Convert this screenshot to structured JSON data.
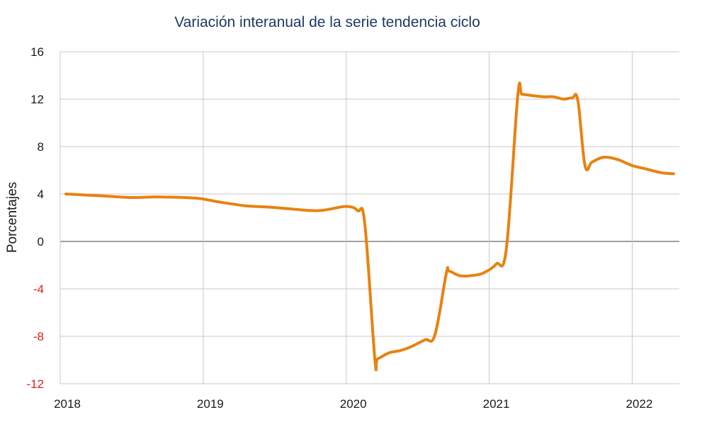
{
  "chart_data": {
    "type": "line",
    "title": "Variación interanual de la serie tendencia ciclo",
    "xlabel": "",
    "ylabel": "Porcentajes",
    "xlim": [
      2018.0,
      2022.33
    ],
    "ylim": [
      -12,
      16
    ],
    "y_ticks": [
      "16",
      "12",
      "8",
      "4",
      "0",
      "-4",
      "-8",
      "-12"
    ],
    "y_tick_values": [
      16,
      12,
      8,
      4,
      0,
      -4,
      -8,
      -12
    ],
    "x_ticks": [
      "2018",
      "2019",
      "2020",
      "2021",
      "2022"
    ],
    "x_tick_values": [
      2018,
      2019,
      2020,
      2021,
      2022
    ],
    "grid": true,
    "colors": {
      "line": "#e8820e",
      "negative_tick": "#e0201c",
      "positive_tick": "#1a1a1a",
      "grid": "#c8c8c8",
      "zero_line": "#808080"
    },
    "series": [
      {
        "x": [
          2018.04,
          2018.2,
          2018.35,
          2018.5,
          2018.7,
          2018.95,
          2019.1,
          2019.3,
          2019.45,
          2019.6,
          2019.75,
          2019.85,
          2020.0,
          2020.08,
          2020.13,
          2020.2,
          2020.22,
          2020.3,
          2020.38,
          2020.45,
          2020.55,
          2020.62,
          2020.7,
          2020.72,
          2020.8,
          2020.9,
          2020.97,
          2021.05,
          2021.12,
          2021.2,
          2021.23,
          2021.3,
          2021.38,
          2021.45,
          2021.52,
          2021.58,
          2021.62,
          2021.67,
          2021.72,
          2021.8,
          2021.9,
          2022.0,
          2022.1,
          2022.2,
          2022.29
        ],
        "y": [
          4.0,
          3.9,
          3.8,
          3.7,
          3.75,
          3.65,
          3.35,
          3.0,
          2.9,
          2.75,
          2.6,
          2.65,
          2.95,
          2.6,
          1.5,
          -9.9,
          -9.9,
          -9.4,
          -9.2,
          -8.9,
          -8.3,
          -7.9,
          -2.7,
          -2.5,
          -2.9,
          -2.85,
          -2.6,
          -1.9,
          -0.6,
          12.3,
          12.4,
          12.3,
          12.2,
          12.2,
          12.0,
          12.1,
          11.9,
          6.4,
          6.7,
          7.1,
          6.9,
          6.4,
          6.1,
          5.8,
          5.7
        ]
      }
    ]
  }
}
